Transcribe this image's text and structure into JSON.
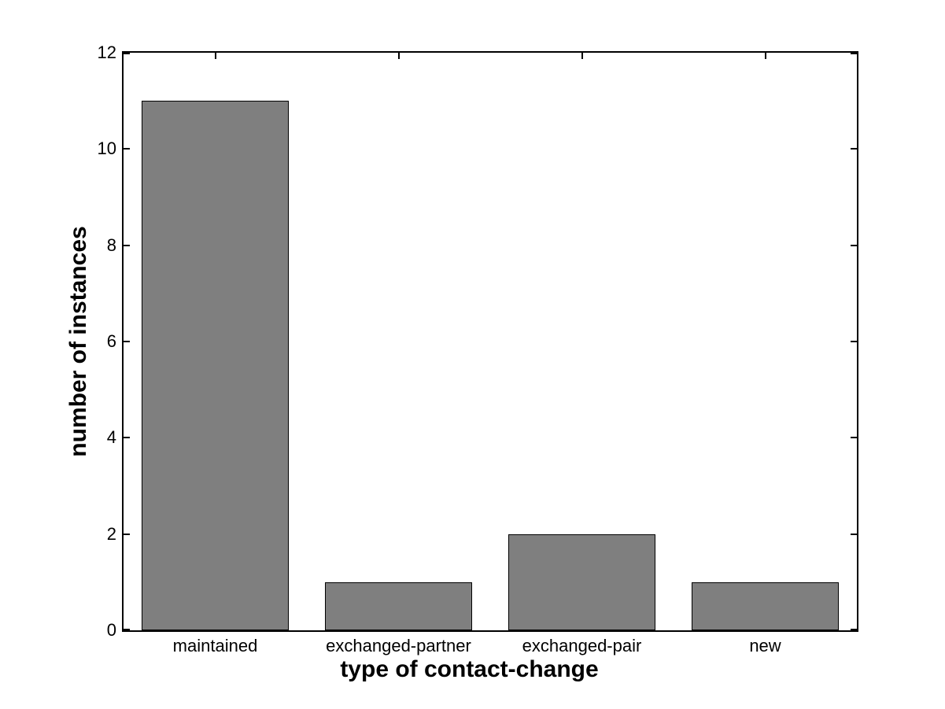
{
  "figure": {
    "background_color": "#ffffff"
  },
  "chart_data": {
    "type": "bar",
    "categories": [
      "maintained",
      "exchanged-partner",
      "exchanged-pair",
      "new"
    ],
    "values": [
      11,
      1,
      2,
      1
    ],
    "title": "",
    "xlabel": "type of contact-change",
    "ylabel": "number of instances",
    "ylim": [
      0,
      12
    ],
    "yticks": [
      0,
      2,
      4,
      6,
      8,
      10,
      12
    ],
    "bar_color": "#7f7f7f",
    "bar_edge_color": "#000000",
    "axis_color": "#000000",
    "bar_width_fraction": 0.8,
    "grid": false,
    "legend": null,
    "box": true,
    "tick_direction": "in"
  }
}
